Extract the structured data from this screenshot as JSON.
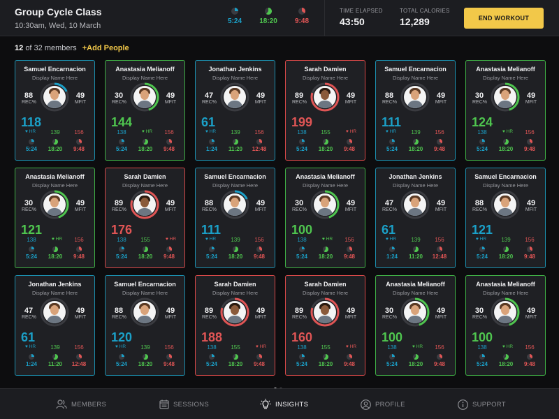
{
  "header": {
    "title": "Group Cycle Class",
    "subtitle": "10:30am, Wed, 10 March",
    "zones": [
      {
        "time": "5:24",
        "color": "#1ba0c8",
        "pie_fraction": 0.25
      },
      {
        "time": "18:20",
        "color": "#4fc64f",
        "pie_fraction": 0.6
      },
      {
        "time": "9:48",
        "color": "#e05555",
        "pie_fraction": 0.35
      }
    ],
    "time_elapsed_label": "TIME ELAPSED",
    "time_elapsed_value": "43:50",
    "total_calories_label": "TOTAL CALORIES",
    "total_calories_value": "12,289",
    "end_workout_label": "END WORKOUT"
  },
  "members_bar": {
    "count": "12",
    "count_suffix": "of 32 members",
    "add_people_label": "+Add People"
  },
  "card_labels": {
    "display_name": "Display Name Here",
    "rec_label": "REC%",
    "mfit_label": "MFIT",
    "hr_label": "HR"
  },
  "cards": [
    {
      "name": "Samuel Encarnacion",
      "rec": "88",
      "mfit": "49",
      "hr": "118",
      "zone": "blue",
      "s_blue": "",
      "s_green": "139",
      "s_red": "156",
      "t_blue": "5:24",
      "t_green": "18:20",
      "t_red": "9:48",
      "ring_fraction": 0.18,
      "avatar": "light"
    },
    {
      "name": "Anastasia Melianoff",
      "rec": "30",
      "mfit": "49",
      "hr": "144",
      "zone": "green",
      "s_blue": "138",
      "s_green": "",
      "s_red": "156",
      "t_blue": "5:24",
      "t_green": "18:20",
      "t_red": "9:48",
      "ring_fraction": 0.45,
      "avatar": "light"
    },
    {
      "name": "Jonathan Jenkins",
      "rec": "47",
      "mfit": "49",
      "hr": "61",
      "zone": "blue",
      "s_blue": "",
      "s_green": "139",
      "s_red": "156",
      "t_blue": "1:24",
      "t_green": "11:20",
      "t_red": "12:48",
      "ring_fraction": 0.0,
      "avatar": "light"
    },
    {
      "name": "Sarah Damien",
      "rec": "89",
      "mfit": "49",
      "hr": "199",
      "zone": "red",
      "s_blue": "138",
      "s_green": "155",
      "s_red": "",
      "t_blue": "5:24",
      "t_green": "18:20",
      "t_red": "9:48",
      "ring_fraction": 0.8,
      "avatar": "dark"
    },
    {
      "name": "Samuel Encarnacion",
      "rec": "88",
      "mfit": "49",
      "hr": "111",
      "zone": "blue",
      "s_blue": "",
      "s_green": "139",
      "s_red": "156",
      "t_blue": "5:24",
      "t_green": "18:20",
      "t_red": "9:48",
      "ring_fraction": 0.0,
      "avatar": "light"
    },
    {
      "name": "Anastasia Melianoff",
      "rec": "30",
      "mfit": "49",
      "hr": "124",
      "zone": "green",
      "s_blue": "138",
      "s_green": "",
      "s_red": "156",
      "t_blue": "5:24",
      "t_green": "18:20",
      "t_red": "9:48",
      "ring_fraction": 0.45,
      "avatar": "light"
    },
    {
      "name": "Anastasia Melianoff",
      "rec": "30",
      "mfit": "49",
      "hr": "121",
      "zone": "green",
      "s_blue": "138",
      "s_green": "",
      "s_red": "156",
      "t_blue": "5:24",
      "t_green": "18:20",
      "t_red": "9:48",
      "ring_fraction": 0.45,
      "avatar": "light"
    },
    {
      "name": "Sarah Damien",
      "rec": "89",
      "mfit": "49",
      "hr": "176",
      "zone": "red",
      "s_blue": "138",
      "s_green": "155",
      "s_red": "",
      "t_blue": "5:24",
      "t_green": "18:20",
      "t_red": "9:48",
      "ring_fraction": 0.8,
      "avatar": "dark"
    },
    {
      "name": "Samuel Encarnacion",
      "rec": "88",
      "mfit": "49",
      "hr": "111",
      "zone": "blue",
      "s_blue": "",
      "s_green": "139",
      "s_red": "156",
      "t_blue": "5:24",
      "t_green": "18:20",
      "t_red": "9:48",
      "ring_fraction": 0.18,
      "avatar": "light"
    },
    {
      "name": "Anastasia Melianoff",
      "rec": "30",
      "mfit": "49",
      "hr": "100",
      "zone": "green",
      "s_blue": "138",
      "s_green": "",
      "s_red": "156",
      "t_blue": "5:24",
      "t_green": "18:20",
      "t_red": "9:48",
      "ring_fraction": 0.45,
      "avatar": "light"
    },
    {
      "name": "Jonathan Jenkins",
      "rec": "47",
      "mfit": "49",
      "hr": "61",
      "zone": "blue",
      "s_blue": "",
      "s_green": "139",
      "s_red": "156",
      "t_blue": "1:24",
      "t_green": "11:20",
      "t_red": "12:48",
      "ring_fraction": 0.0,
      "avatar": "light"
    },
    {
      "name": "Samuel Encarnacion",
      "rec": "88",
      "mfit": "49",
      "hr": "121",
      "zone": "blue",
      "s_blue": "",
      "s_green": "139",
      "s_red": "156",
      "t_blue": "5:24",
      "t_green": "18:20",
      "t_red": "9:48",
      "ring_fraction": 0.0,
      "avatar": "light"
    },
    {
      "name": "Jonathan Jenkins",
      "rec": "47",
      "mfit": "49",
      "hr": "61",
      "zone": "blue",
      "s_blue": "",
      "s_green": "139",
      "s_red": "156",
      "t_blue": "1:24",
      "t_green": "11:20",
      "t_red": "12:48",
      "ring_fraction": 0.0,
      "avatar": "light"
    },
    {
      "name": "Samuel Encarnacion",
      "rec": "88",
      "mfit": "49",
      "hr": "120",
      "zone": "blue",
      "s_blue": "",
      "s_green": "139",
      "s_red": "156",
      "t_blue": "5:24",
      "t_green": "18:20",
      "t_red": "9:48",
      "ring_fraction": 0.0,
      "avatar": "light"
    },
    {
      "name": "Sarah Damien",
      "rec": "89",
      "mfit": "49",
      "hr": "188",
      "zone": "red",
      "s_blue": "138",
      "s_green": "155",
      "s_red": "",
      "t_blue": "5:24",
      "t_green": "18:20",
      "t_red": "9:48",
      "ring_fraction": 0.8,
      "avatar": "dark"
    },
    {
      "name": "Sarah Damien",
      "rec": "89",
      "mfit": "49",
      "hr": "160",
      "zone": "red",
      "s_blue": "138",
      "s_green": "155",
      "s_red": "",
      "t_blue": "5:24",
      "t_green": "18:20",
      "t_red": "9:48",
      "ring_fraction": 0.8,
      "avatar": "dark"
    },
    {
      "name": "Anastasia Melianoff",
      "rec": "30",
      "mfit": "49",
      "hr": "100",
      "zone": "green",
      "s_blue": "138",
      "s_green": "",
      "s_red": "156",
      "t_blue": "5:24",
      "t_green": "18:20",
      "t_red": "9:48",
      "ring_fraction": 0.45,
      "avatar": "light"
    },
    {
      "name": "Anastasia Melianoff",
      "rec": "30",
      "mfit": "49",
      "hr": "100",
      "zone": "green",
      "s_blue": "138",
      "s_green": "",
      "s_red": "156",
      "t_blue": "5:24",
      "t_green": "18:20",
      "t_red": "9:48",
      "ring_fraction": 0.45,
      "avatar": "light"
    }
  ],
  "pager": {
    "pages": 2,
    "current": 0
  },
  "nav": [
    {
      "label": "MEMBERS",
      "icon": "members-icon",
      "active": false
    },
    {
      "label": "SESSIONS",
      "icon": "sessions-icon",
      "active": false
    },
    {
      "label": "INSIGHTS",
      "icon": "insights-icon",
      "active": true
    },
    {
      "label": "PROFILE",
      "icon": "profile-icon",
      "active": false
    },
    {
      "label": "SUPPORT",
      "icon": "support-icon",
      "active": false
    }
  ],
  "colors": {
    "blue": "#1ba0c8",
    "green": "#4fc64f",
    "red": "#e05555",
    "accent": "#f2c849"
  }
}
